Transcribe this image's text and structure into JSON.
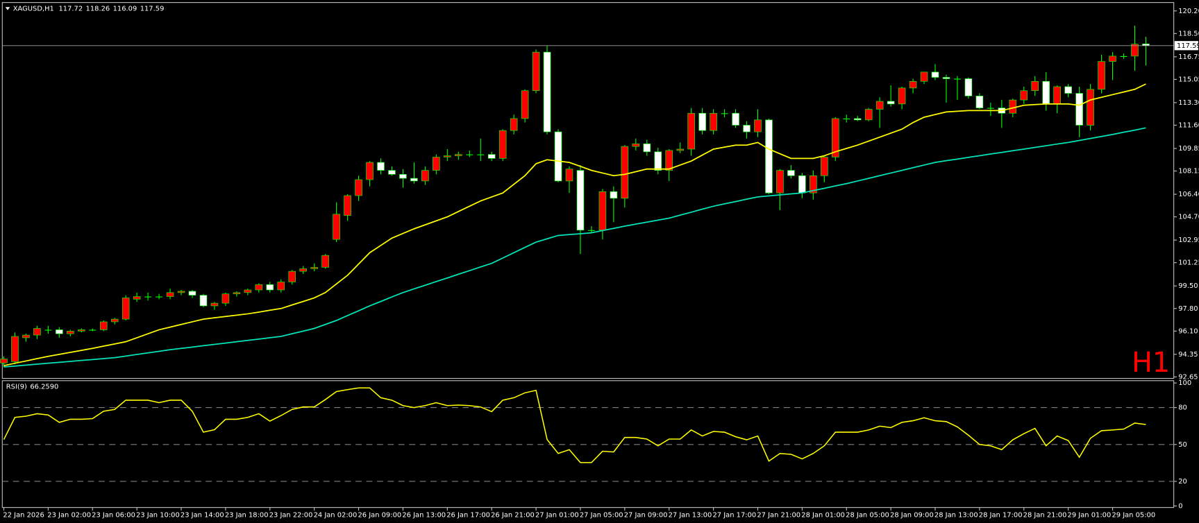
{
  "chart_data": [
    {
      "type": "candlestick",
      "title": "XAGUSD,H1",
      "watermark": "H1",
      "watermark_color": "#ff0000",
      "up_color": "#ff0000",
      "down_color": "#ffffff",
      "wick_color": "#00ff00",
      "price_line_color": "#a0a0a0",
      "categories": [
        "22 Jan 2026",
        null,
        null,
        null,
        "23 Jan 02:00",
        null,
        null,
        null,
        "23 Jan 06:00",
        null,
        null,
        null,
        "23 Jan 10:00",
        null,
        null,
        null,
        "23 Jan 14:00",
        null,
        null,
        null,
        "23 Jan 18:00",
        null,
        null,
        null,
        "23 Jan 22:00",
        null,
        null,
        null,
        "24 Jan 02:00",
        null,
        null,
        null,
        "26 Jan 09:00",
        null,
        null,
        null,
        "26 Jan 13:00",
        null,
        null,
        null,
        "26 Jan 17:00",
        null,
        null,
        null,
        "26 Jan 21:00",
        null,
        null,
        null,
        "27 Jan 01:00",
        null,
        null,
        null,
        "27 Jan 05:00",
        null,
        null,
        null,
        "27 Jan 09:00",
        null,
        null,
        null,
        "27 Jan 13:00",
        null,
        null,
        null,
        "27 Jan 17:00",
        null,
        null,
        null,
        "27 Jan 21:00",
        null,
        null,
        null,
        "28 Jan 01:00",
        null,
        null,
        null,
        "28 Jan 05:00",
        null,
        null,
        null,
        "28 Jan 09:00",
        null,
        null,
        null,
        "28 Jan 13:00",
        null,
        null,
        null,
        "28 Jan 17:00",
        null,
        null,
        null,
        "28 Jan 21:00",
        null,
        null,
        null,
        "29 Jan 01:00",
        null,
        null,
        null,
        "29 Jan 05:00",
        null,
        null,
        null
      ],
      "open": [
        93.7,
        93.8,
        95.6,
        95.8,
        96.2,
        96.2,
        95.9,
        96.1,
        96.2,
        96.2,
        96.8,
        97.0,
        98.5,
        98.7,
        98.7,
        98.7,
        99.0,
        99.1,
        98.8,
        98.0,
        98.2,
        98.9,
        99.0,
        99.2,
        99.6,
        99.2,
        99.8,
        100.6,
        100.8,
        100.9,
        103.0,
        104.8,
        106.3,
        107.5,
        108.8,
        108.2,
        107.9,
        107.6,
        107.4,
        108.2,
        109.2,
        109.3,
        109.4,
        109.4,
        109.4,
        109.1,
        111.2,
        112.1,
        114.2,
        117.1,
        111.1,
        107.4,
        108.2,
        103.7,
        103.7,
        106.6,
        106.1,
        110.0,
        110.2,
        109.6,
        108.2,
        109.7,
        109.8,
        112.5,
        111.2,
        112.5,
        112.5,
        111.6,
        111.1,
        112.0,
        106.5,
        108.2,
        107.8,
        106.5,
        107.8,
        109.2,
        112.1,
        112.1,
        112.0,
        112.8,
        113.4,
        113.2,
        114.4,
        114.9,
        115.6,
        115.2,
        115.1,
        115.1,
        113.8,
        112.9,
        112.9,
        112.5,
        113.5,
        114.2,
        114.9,
        113.2,
        114.5,
        114.0,
        111.6,
        114.3,
        116.4,
        116.8,
        116.8,
        117.72
      ],
      "high": [
        94.2,
        96.0,
        95.9,
        96.5,
        96.5,
        96.4,
        96.2,
        96.3,
        96.3,
        96.9,
        97.1,
        98.8,
        99.0,
        99.0,
        98.9,
        99.3,
        99.2,
        99.2,
        98.9,
        98.3,
        99.0,
        99.1,
        99.3,
        99.7,
        99.8,
        100.0,
        100.7,
        101.0,
        101.2,
        101.9,
        105.8,
        106.4,
        107.8,
        108.9,
        109.1,
        108.5,
        108.3,
        108.8,
        108.5,
        109.4,
        109.8,
        109.6,
        109.7,
        110.6,
        109.6,
        111.3,
        112.4,
        114.3,
        117.3,
        117.6,
        111.3,
        108.5,
        108.6,
        104.0,
        106.8,
        107.0,
        110.1,
        110.6,
        110.5,
        109.9,
        109.8,
        110.3,
        112.9,
        112.9,
        112.8,
        112.8,
        112.8,
        111.9,
        112.8,
        112.1,
        108.3,
        108.6,
        108.0,
        108.2,
        109.3,
        112.2,
        112.4,
        112.3,
        112.9,
        113.7,
        114.6,
        114.5,
        115.1,
        115.6,
        116.2,
        115.4,
        115.3,
        115.2,
        114.0,
        113.3,
        113.5,
        113.6,
        114.5,
        115.3,
        115.6,
        114.6,
        114.7,
        114.5,
        114.7,
        116.9,
        117.1,
        117.0,
        119.1,
        118.26
      ],
      "low": [
        93.4,
        93.6,
        95.3,
        95.5,
        95.9,
        95.6,
        95.7,
        96.0,
        96.1,
        96.1,
        96.6,
        96.9,
        98.3,
        98.4,
        98.5,
        98.5,
        98.8,
        98.6,
        97.9,
        97.7,
        98.0,
        98.7,
        98.8,
        99.0,
        99.0,
        99.0,
        99.6,
        100.4,
        100.6,
        100.8,
        102.8,
        104.4,
        105.9,
        107.0,
        107.9,
        107.8,
        106.9,
        107.2,
        107.1,
        107.9,
        108.9,
        109.0,
        109.2,
        108.9,
        108.9,
        108.9,
        110.9,
        111.8,
        114.0,
        110.9,
        107.3,
        106.5,
        101.9,
        103.5,
        103.0,
        104.3,
        105.4,
        109.7,
        109.3,
        107.9,
        107.4,
        109.5,
        109.3,
        110.9,
        110.9,
        112.2,
        111.4,
        110.6,
        110.7,
        106.4,
        105.2,
        107.6,
        106.1,
        106.0,
        107.3,
        108.9,
        111.8,
        111.9,
        111.9,
        111.4,
        113.0,
        112.8,
        114.0,
        114.7,
        115.0,
        113.3,
        113.5,
        113.6,
        112.8,
        112.3,
        111.4,
        112.2,
        113.2,
        113.8,
        112.7,
        112.5,
        113.7,
        110.7,
        111.2,
        114.0,
        115.0,
        116.6,
        115.7,
        116.09
      ],
      "close": [
        94.0,
        95.7,
        95.8,
        96.3,
        96.2,
        95.9,
        96.1,
        96.2,
        96.2,
        96.8,
        97.0,
        98.6,
        98.7,
        98.7,
        98.7,
        99.0,
        99.1,
        98.8,
        98.0,
        98.2,
        98.9,
        99.0,
        99.2,
        99.6,
        99.2,
        99.8,
        100.6,
        100.8,
        100.9,
        101.8,
        104.9,
        106.3,
        107.5,
        108.8,
        108.2,
        107.9,
        107.6,
        107.4,
        108.2,
        109.2,
        109.3,
        109.4,
        109.4,
        109.4,
        109.1,
        111.2,
        112.1,
        114.2,
        117.1,
        111.1,
        107.4,
        108.3,
        103.7,
        103.7,
        106.6,
        106.1,
        110.0,
        110.2,
        109.6,
        108.2,
        109.7,
        109.8,
        112.5,
        111.2,
        112.5,
        112.5,
        111.6,
        111.1,
        112.0,
        106.5,
        108.2,
        107.8,
        106.5,
        107.8,
        109.2,
        112.1,
        112.1,
        112.0,
        112.8,
        113.4,
        113.2,
        114.4,
        114.9,
        115.6,
        115.2,
        115.1,
        115.1,
        113.8,
        112.9,
        112.9,
        112.5,
        113.5,
        114.2,
        114.9,
        113.2,
        114.5,
        114.0,
        111.6,
        114.3,
        116.4,
        116.8,
        116.8,
        117.7,
        117.59
      ],
      "overlays": [
        {
          "color": "#ffff00",
          "values": [
            93.5,
            93.68,
            93.85,
            94.03,
            94.2,
            94.35,
            94.5,
            94.65,
            94.8,
            94.97,
            95.13,
            95.3,
            95.6,
            95.9,
            96.2,
            96.4,
            96.6,
            96.8,
            97.0,
            97.1,
            97.2,
            97.3,
            97.4,
            97.53,
            97.67,
            97.8,
            98.07,
            98.33,
            98.6,
            99.0,
            99.65,
            100.3,
            101.15,
            102.0,
            102.55,
            103.1,
            103.45,
            103.8,
            104.1,
            104.4,
            104.7,
            105.1,
            105.5,
            105.9,
            106.2,
            106.5,
            107.15,
            107.8,
            108.7,
            109.0,
            108.9,
            108.8,
            108.5,
            108.2,
            108.0,
            107.8,
            107.9,
            108.1,
            108.3,
            108.3,
            108.3,
            108.6,
            108.9,
            109.35,
            109.8,
            109.95,
            110.1,
            110.1,
            110.3,
            109.8,
            109.45,
            109.1,
            109.1,
            109.1,
            109.3,
            109.6,
            109.85,
            110.1,
            110.4,
            110.7,
            111.0,
            111.3,
            111.8,
            112.2,
            112.4,
            112.6,
            112.65,
            112.7,
            112.7,
            112.7,
            112.7,
            112.9,
            113.1,
            113.15,
            113.2,
            113.2,
            113.2,
            113.1,
            113.5,
            113.7,
            113.9,
            114.1,
            114.3,
            114.7
          ]
        },
        {
          "color": "#00e6b8",
          "values": [
            93.4,
            93.47,
            93.54,
            93.61,
            93.68,
            93.75,
            93.82,
            93.89,
            93.96,
            94.03,
            94.1,
            94.22,
            94.34,
            94.46,
            94.58,
            94.7,
            94.8,
            94.9,
            95.0,
            95.1,
            95.2,
            95.3,
            95.4,
            95.5,
            95.6,
            95.7,
            95.9,
            96.1,
            96.3,
            96.6,
            96.9,
            97.27,
            97.63,
            98.0,
            98.33,
            98.67,
            99.0,
            99.28,
            99.55,
            99.83,
            100.1,
            100.38,
            100.65,
            100.93,
            101.2,
            101.6,
            102.0,
            102.4,
            102.8,
            103.05,
            103.3,
            103.37,
            103.43,
            103.5,
            103.67,
            103.83,
            104.0,
            104.15,
            104.3,
            104.45,
            104.6,
            104.83,
            105.05,
            105.28,
            105.5,
            105.68,
            105.85,
            106.03,
            106.2,
            106.28,
            106.35,
            106.43,
            106.5,
            106.68,
            106.85,
            107.03,
            107.2,
            107.4,
            107.6,
            107.8,
            108.0,
            108.2,
            108.4,
            108.6,
            108.8,
            108.93,
            109.05,
            109.18,
            109.3,
            109.43,
            109.55,
            109.68,
            109.8,
            109.93,
            110.05,
            110.18,
            110.3,
            110.45,
            110.6,
            110.75,
            110.9,
            111.07,
            111.23,
            111.4
          ]
        }
      ],
      "ylim": [
        92.54,
        120.72
      ],
      "yticks": [
        {
          "value": 120.2,
          "label": "120.20"
        },
        {
          "value": 118.5,
          "label": "118.50"
        },
        116.75,
        115.05,
        {
          "value": 113.3,
          "label": "113.30"
        },
        {
          "value": 111.6,
          "label": "111.60"
        },
        109.85,
        108.15,
        {
          "value": 106.4,
          "label": "106.40"
        },
        {
          "value": 104.7,
          "label": "104.70"
        },
        102.95,
        101.25,
        {
          "value": 99.5,
          "label": "99.50"
        },
        {
          "value": 97.8,
          "label": "97.80"
        },
        {
          "value": 96.1,
          "label": "96.10"
        },
        94.35,
        92.65
      ]
    },
    {
      "type": "line",
      "title": "RSI(9)",
      "last_value_label": "66.2590",
      "color": "#ffff00",
      "level_color": "#808080",
      "values": [
        54,
        72,
        73,
        75,
        74,
        68,
        70.5,
        70.5,
        71,
        77,
        78.5,
        86,
        86,
        86,
        84,
        86,
        86,
        77,
        60,
        62,
        70.5,
        70.5,
        72,
        75,
        69,
        73.5,
        78.5,
        80.5,
        80.5,
        86.5,
        93,
        94.6,
        96,
        96,
        88,
        86,
        81.6,
        80,
        81.6,
        84,
        81.6,
        82,
        81.6,
        80.5,
        76.7,
        86,
        88,
        92,
        94,
        54,
        42.7,
        45.8,
        35.3,
        35.3,
        44.5,
        43.9,
        55.7,
        55.7,
        54.4,
        48.9,
        54.4,
        54.4,
        61.8,
        56.9,
        60.6,
        60,
        56.3,
        53.8,
        56.9,
        36.5,
        42.7,
        42,
        38.3,
        42.7,
        48.9,
        60,
        60,
        60,
        61.8,
        64.9,
        63.7,
        68,
        69.3,
        71.7,
        69.3,
        68.6,
        64.3,
        57.5,
        50,
        48.9,
        45.8,
        53.8,
        58.8,
        63.1,
        48.9,
        56.9,
        53.2,
        39.6,
        55,
        61.2,
        61.8,
        62.5,
        67.4,
        66.259
      ],
      "ylim": [
        0,
        100
      ],
      "yticks": [
        0,
        20,
        50,
        80,
        100
      ]
    }
  ]
}
